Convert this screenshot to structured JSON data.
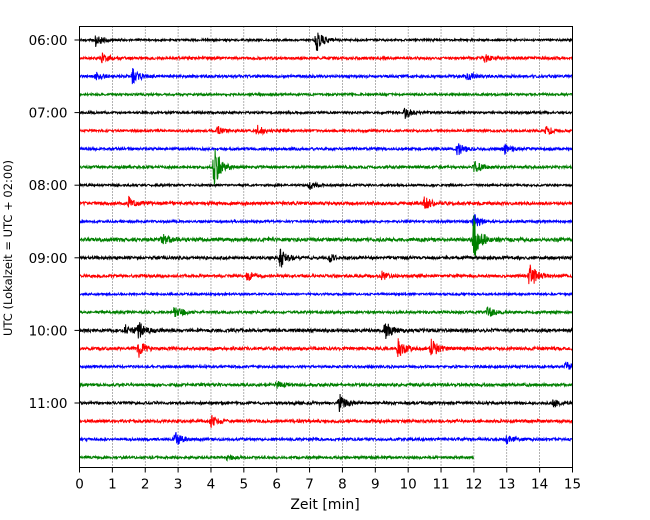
{
  "chart_data": {
    "type": "line",
    "title": "",
    "xlabel": "Zeit  [min]",
    "ylabel": "UTC (Lokalzeit = UTC + 02:00)",
    "xlim": [
      0,
      15
    ],
    "x_ticks": [
      "0",
      "1",
      "2",
      "3",
      "4",
      "5",
      "6",
      "7",
      "8",
      "9",
      "10",
      "11",
      "12",
      "13",
      "14",
      "15"
    ],
    "y_ticks": [
      "06:00",
      "07:00",
      "08:00",
      "09:00",
      "10:00",
      "11:00"
    ],
    "grid": "vertical dotted lines at each minute",
    "trace_interval_minutes": 15,
    "color_cycle": [
      "#000000",
      "#ff0000",
      "#0000ff",
      "#008000"
    ],
    "traces": [
      {
        "start": "06:00",
        "color": "#000000",
        "end_min": 15,
        "noise": 1.0,
        "events": [
          {
            "t": 0.5,
            "amp": 8
          },
          {
            "t": 7.2,
            "amp": 14
          }
        ]
      },
      {
        "start": "06:15",
        "color": "#ff0000",
        "end_min": 15,
        "noise": 1.3,
        "events": [
          {
            "t": 0.7,
            "amp": 5
          },
          {
            "t": 12.3,
            "amp": 4
          }
        ]
      },
      {
        "start": "06:30",
        "color": "#0000ff",
        "end_min": 15,
        "noise": 1.3,
        "events": [
          {
            "t": 0.5,
            "amp": 4
          },
          {
            "t": 1.6,
            "amp": 9
          },
          {
            "t": 11.8,
            "amp": 4
          }
        ]
      },
      {
        "start": "06:45",
        "color": "#008000",
        "end_min": 15,
        "noise": 1.1,
        "events": []
      },
      {
        "start": "07:00",
        "color": "#000000",
        "end_min": 15,
        "noise": 1.1,
        "events": [
          {
            "t": 9.9,
            "amp": 6
          }
        ]
      },
      {
        "start": "07:15",
        "color": "#ff0000",
        "end_min": 15,
        "noise": 1.1,
        "events": [
          {
            "t": 4.2,
            "amp": 5
          },
          {
            "t": 5.4,
            "amp": 6
          },
          {
            "t": 14.2,
            "amp": 5
          }
        ]
      },
      {
        "start": "07:30",
        "color": "#0000ff",
        "end_min": 15,
        "noise": 1.3,
        "events": [
          {
            "t": 11.5,
            "amp": 7
          },
          {
            "t": 12.9,
            "amp": 6
          }
        ]
      },
      {
        "start": "07:45",
        "color": "#008000",
        "end_min": 15,
        "noise": 1.3,
        "events": [
          {
            "t": 4.1,
            "amp": 22
          },
          {
            "t": 12.0,
            "amp": 7
          }
        ]
      },
      {
        "start": "08:00",
        "color": "#000000",
        "end_min": 15,
        "noise": 1.0,
        "events": [
          {
            "t": 7.0,
            "amp": 4
          }
        ]
      },
      {
        "start": "08:15",
        "color": "#ff0000",
        "end_min": 15,
        "noise": 1.5,
        "events": [
          {
            "t": 1.5,
            "amp": 6
          },
          {
            "t": 10.5,
            "amp": 7
          }
        ]
      },
      {
        "start": "08:30",
        "color": "#0000ff",
        "end_min": 15,
        "noise": 1.1,
        "events": [
          {
            "t": 12.0,
            "amp": 9
          }
        ]
      },
      {
        "start": "08:45",
        "color": "#008000",
        "end_min": 15,
        "noise": 1.7,
        "events": [
          {
            "t": 2.5,
            "amp": 6
          },
          {
            "t": 12.0,
            "amp": 26
          }
        ]
      },
      {
        "start": "09:00",
        "color": "#000000",
        "end_min": 15,
        "noise": 1.4,
        "events": [
          {
            "t": 6.1,
            "amp": 11
          },
          {
            "t": 7.6,
            "amp": 4
          }
        ]
      },
      {
        "start": "09:15",
        "color": "#ff0000",
        "end_min": 15,
        "noise": 1.4,
        "events": [
          {
            "t": 5.1,
            "amp": 5
          },
          {
            "t": 9.2,
            "amp": 4
          },
          {
            "t": 13.7,
            "amp": 14
          }
        ]
      },
      {
        "start": "09:30",
        "color": "#0000ff",
        "end_min": 15,
        "noise": 1.0,
        "events": []
      },
      {
        "start": "09:45",
        "color": "#008000",
        "end_min": 15,
        "noise": 1.2,
        "events": [
          {
            "t": 2.9,
            "amp": 8
          },
          {
            "t": 12.4,
            "amp": 6
          }
        ]
      },
      {
        "start": "10:00",
        "color": "#000000",
        "end_min": 15,
        "noise": 1.6,
        "events": [
          {
            "t": 1.4,
            "amp": 5
          },
          {
            "t": 1.8,
            "amp": 8
          },
          {
            "t": 9.3,
            "amp": 9
          }
        ]
      },
      {
        "start": "10:15",
        "color": "#ff0000",
        "end_min": 15,
        "noise": 1.5,
        "events": [
          {
            "t": 1.8,
            "amp": 9
          },
          {
            "t": 9.7,
            "amp": 11
          },
          {
            "t": 10.7,
            "amp": 10
          }
        ]
      },
      {
        "start": "10:30",
        "color": "#0000ff",
        "end_min": 15,
        "noise": 1.2,
        "events": [
          {
            "t": 14.8,
            "amp": 5
          }
        ]
      },
      {
        "start": "10:45",
        "color": "#008000",
        "end_min": 15,
        "noise": 1.4,
        "events": [
          {
            "t": 6.0,
            "amp": 4
          }
        ]
      },
      {
        "start": "11:00",
        "color": "#000000",
        "end_min": 15,
        "noise": 1.3,
        "events": [
          {
            "t": 7.9,
            "amp": 10
          },
          {
            "t": 14.4,
            "amp": 4
          }
        ]
      },
      {
        "start": "11:15",
        "color": "#ff0000",
        "end_min": 15,
        "noise": 1.4,
        "events": [
          {
            "t": 4.0,
            "amp": 6
          }
        ]
      },
      {
        "start": "11:30",
        "color": "#0000ff",
        "end_min": 15,
        "noise": 1.3,
        "events": [
          {
            "t": 2.9,
            "amp": 8
          },
          {
            "t": 13.0,
            "amp": 4
          }
        ]
      },
      {
        "start": "11:45",
        "color": "#008000",
        "end_min": 12,
        "noise": 1.2,
        "events": [
          {
            "t": 4.5,
            "amp": 3
          }
        ]
      }
    ]
  }
}
